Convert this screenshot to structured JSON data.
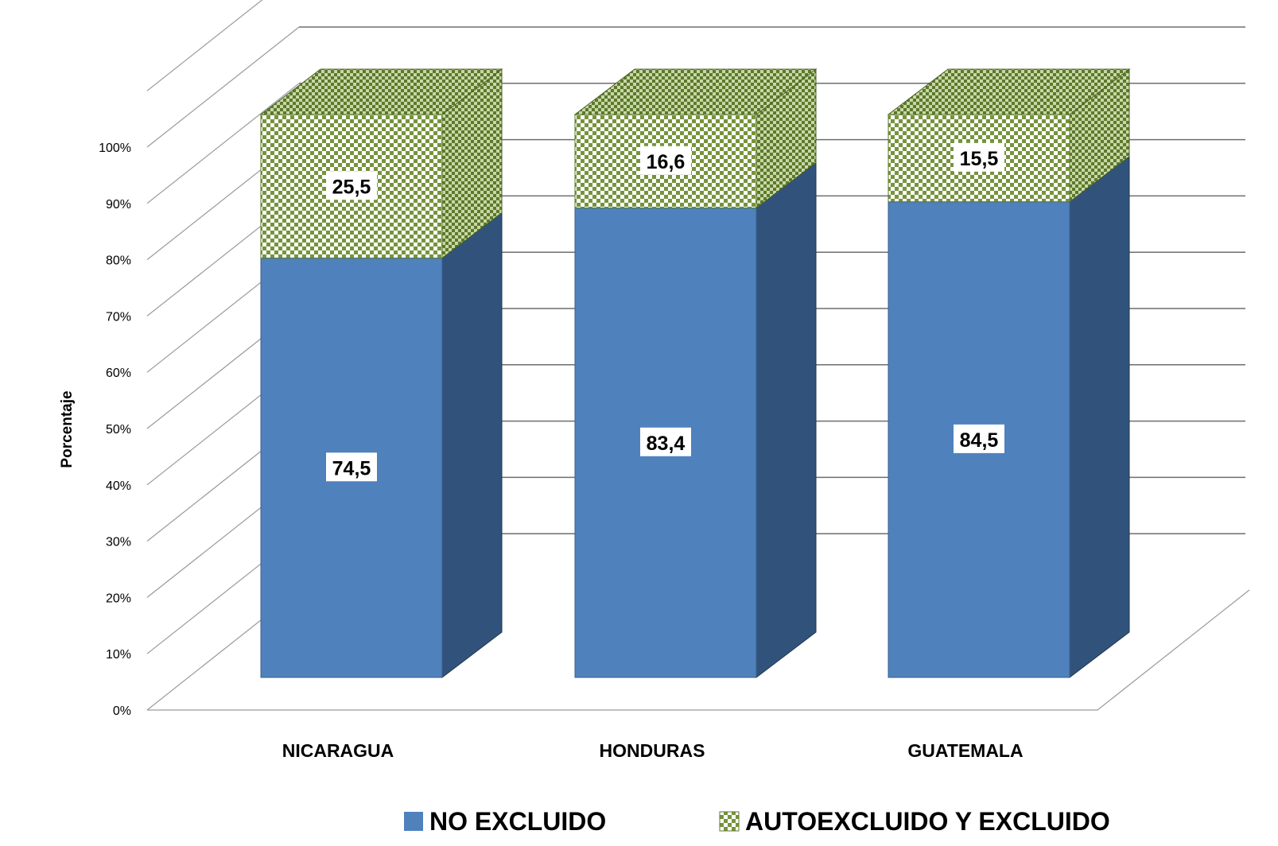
{
  "chart_data": {
    "type": "bar",
    "stacked": true,
    "three_d": true,
    "title": "",
    "xlabel": "",
    "ylabel": "Porcentaje",
    "ylim": [
      0,
      100
    ],
    "yticks": [
      "0%",
      "10%",
      "20%",
      "30%",
      "40%",
      "50%",
      "60%",
      "70%",
      "80%",
      "90%",
      "100%"
    ],
    "categories": [
      "NICARAGUA",
      "HONDURAS",
      "GUATEMALA"
    ],
    "series": [
      {
        "name": "NO EXCLUIDO",
        "values": [
          74.5,
          83.4,
          84.5
        ],
        "labels": [
          "74,5",
          "83,4",
          "84,5"
        ],
        "color": "#4F81BD",
        "side_color": "#31537B",
        "pattern": "solid"
      },
      {
        "name": "AUTOEXCLUIDO Y EXCLUIDO",
        "values": [
          25.5,
          16.6,
          15.5
        ],
        "labels": [
          "25,5",
          "16,6",
          "15,5"
        ],
        "color": "#77933C",
        "pattern": "checkerboard"
      }
    ],
    "grid": true,
    "legend_position": "bottom"
  }
}
